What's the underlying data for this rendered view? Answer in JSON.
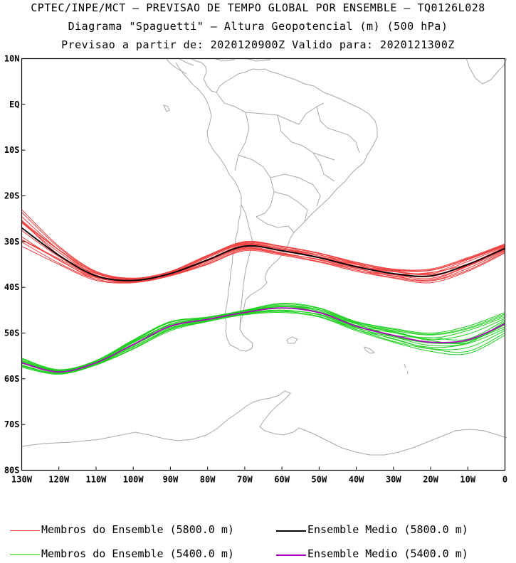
{
  "title": {
    "line1": "CPTEC/INPE/MCT — PREVISAO DE TEMPO GLOBAL POR ENSEMBLE — TQ0126L028",
    "line2": "Diagrama \"Spaguetti\" — Altura Geopotencial (m) (500 hPa)",
    "line3": "Previsao a partir de: 2020120900Z  Valido para: 2020121300Z"
  },
  "map": {
    "lon_range": [
      -130,
      0
    ],
    "lat_range": [
      -80,
      10
    ],
    "lat_ticks": [
      "10N",
      "EQ",
      "10S",
      "20S",
      "30S",
      "40S",
      "50S",
      "60S",
      "70S",
      "80S"
    ],
    "lon_ticks": [
      "130W",
      "120W",
      "110W",
      "100W",
      "90W",
      "80W",
      "70W",
      "60W",
      "50W",
      "40W",
      "30W",
      "20W",
      "10W",
      "0"
    ],
    "coast_color": "#a8a8a8"
  },
  "chart_data": {
    "type": "line",
    "x_unit": "longitude (deg, negative = W)",
    "y_unit": "latitude (deg, negative = S)",
    "series": [
      {
        "name": "Ensemble Medio (5800.0 m)",
        "color": "#000000",
        "x": [
          -130,
          -120,
          -110,
          -100,
          -90,
          -80,
          -70,
          -60,
          -50,
          -40,
          -30,
          -20,
          -10,
          0
        ],
        "y": [
          -27,
          -33,
          -37.5,
          -38.5,
          -37,
          -34,
          -31,
          -32,
          -33.5,
          -35.5,
          -37,
          -37.5,
          -35,
          -31.5
        ]
      },
      {
        "name": "Ensemble Medio (5400.0 m)",
        "color": "#b000c0",
        "x": [
          -130,
          -120,
          -110,
          -100,
          -90,
          -80,
          -70,
          -60,
          -50,
          -40,
          -30,
          -20,
          -10,
          0
        ],
        "y": [
          -56.5,
          -58.5,
          -56.5,
          -52.5,
          -48.5,
          -47,
          -45.5,
          -44.5,
          -45.5,
          -48.5,
          -50.5,
          -52,
          -51.5,
          -48
        ]
      }
    ],
    "ensemble_members": [
      {
        "name": "Membros do Ensemble (5800.0 m)",
        "color": "#f04040",
        "x": [
          -130,
          -120,
          -110,
          -100,
          -90,
          -80,
          -70,
          -60,
          -50,
          -40,
          -30,
          -20,
          -10,
          0
        ],
        "y_spread": [
          4,
          2,
          1,
          0.5,
          0.5,
          1,
          1,
          1,
          1,
          1,
          1,
          1.5,
          1.5,
          1
        ]
      },
      {
        "name": "Membros do Ensemble (5400.0 m)",
        "color": "#20d020",
        "x": [
          -130,
          -120,
          -110,
          -100,
          -90,
          -80,
          -70,
          -60,
          -50,
          -40,
          -30,
          -20,
          -10,
          0
        ],
        "y_spread": [
          1,
          0.5,
          0.5,
          1,
          1,
          0.5,
          0.5,
          1,
          1,
          1,
          1.5,
          2,
          3,
          2.5
        ]
      }
    ]
  },
  "legend": {
    "items": [
      {
        "label": "Membros do Ensemble (5800.0 m)",
        "color": "#f04040"
      },
      {
        "label": "Ensemble Medio (5800.0 m)",
        "color": "#000000"
      },
      {
        "label": "Membros do Ensemble (5400.0 m)",
        "color": "#20d020"
      },
      {
        "label": "Ensemble Medio (5400.0 m)",
        "color": "#b000c0"
      }
    ]
  }
}
